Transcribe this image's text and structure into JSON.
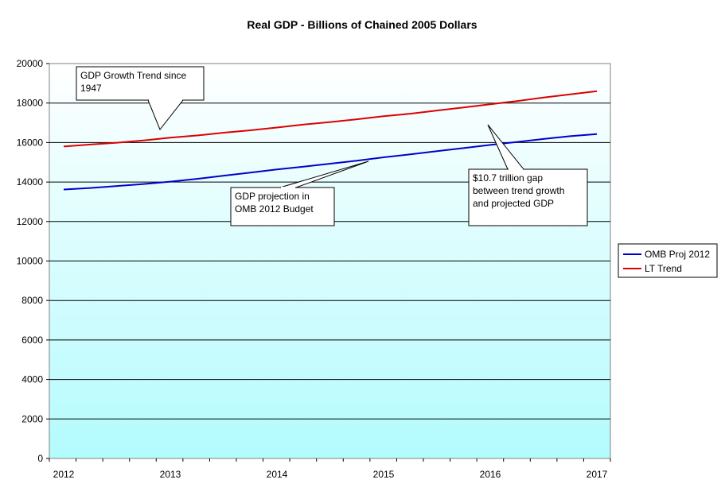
{
  "chart_data": {
    "type": "line",
    "title": "Real GDP - Billions of Chained 2005 Dollars",
    "xlabel": "",
    "ylabel": "",
    "x_tick_labels": [
      "2012",
      "2013",
      "2014",
      "2015",
      "2016",
      "2017"
    ],
    "ylim": [
      0,
      20000
    ],
    "y_ticks": [
      0,
      2000,
      4000,
      6000,
      8000,
      10000,
      12000,
      14000,
      16000,
      18000,
      20000
    ],
    "grid": true,
    "legend_position": "right",
    "x": [
      2012.0,
      2012.25,
      2012.5,
      2012.75,
      2013.0,
      2013.25,
      2013.5,
      2013.75,
      2014.0,
      2014.25,
      2014.5,
      2014.75,
      2015.0,
      2015.25,
      2015.5,
      2015.75,
      2016.0,
      2016.25,
      2016.5,
      2016.75,
      2017.0
    ],
    "series": [
      {
        "name": "OMB Proj 2012",
        "color": "#0000cc",
        "values": [
          13620,
          13700,
          13800,
          13900,
          14020,
          14160,
          14320,
          14480,
          14640,
          14780,
          14930,
          15080,
          15250,
          15400,
          15560,
          15720,
          15880,
          16030,
          16180,
          16320,
          16430
        ]
      },
      {
        "name": "LT Trend",
        "color": "#dd0000",
        "values": [
          15800,
          15900,
          15990,
          16110,
          16250,
          16360,
          16500,
          16620,
          16760,
          16910,
          17040,
          17180,
          17330,
          17460,
          17620,
          17780,
          17940,
          18100,
          18280,
          18440,
          18600
        ]
      }
    ],
    "annotations": [
      {
        "id": "trend",
        "text_lines": [
          "GDP Growth Trend since",
          "1947"
        ]
      },
      {
        "id": "omb",
        "text_lines": [
          "GDP projection in",
          "OMB 2012 Budget"
        ]
      },
      {
        "id": "gap",
        "text_lines": [
          "$10.7 trillion gap",
          "between trend growth",
          "and projected GDP"
        ]
      }
    ],
    "plot_background": {
      "top": "#ffffff",
      "bottom": "#b3fbfd"
    }
  }
}
